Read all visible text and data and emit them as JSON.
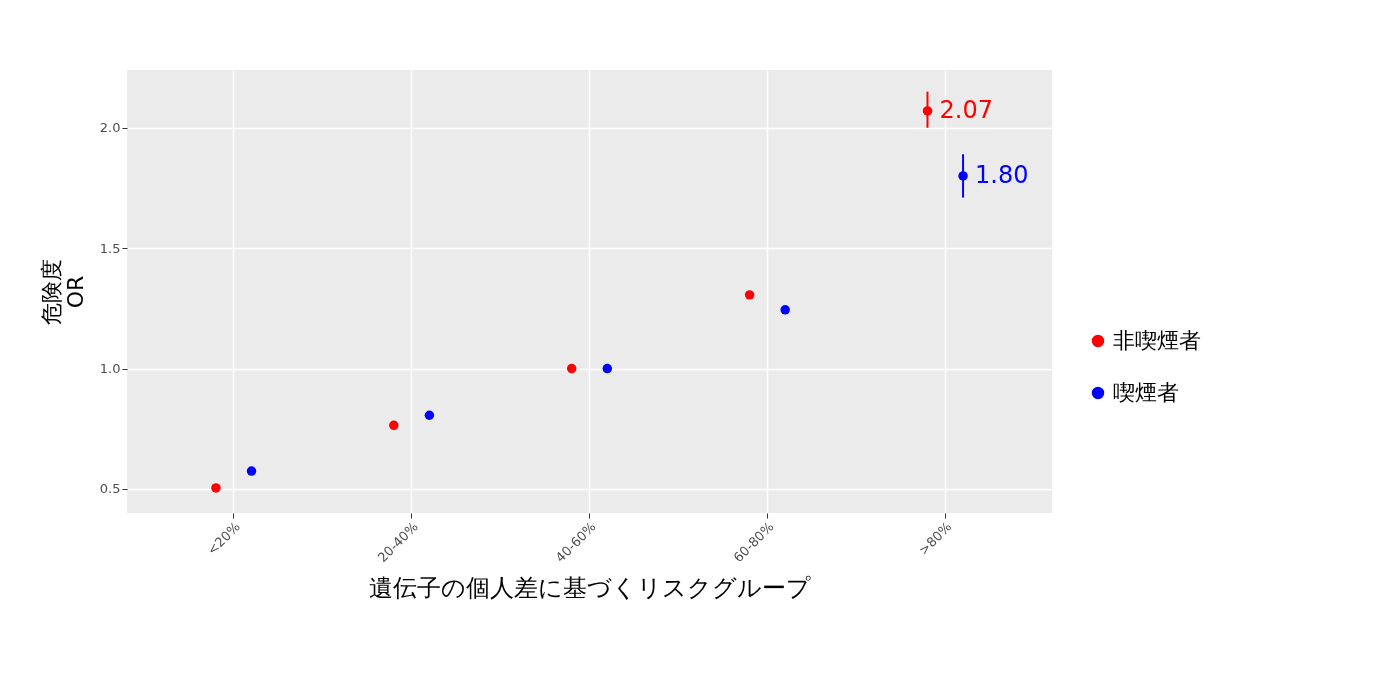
{
  "chart_data": {
    "type": "scatter",
    "xlabel": "遺伝子の個人差に基づくリスクグループ",
    "ylabel": "危険度\nOR",
    "categories": [
      "<20%",
      "20-40%",
      "40-60%",
      "60-80%",
      ">80%"
    ],
    "series": [
      {
        "name": "非喫煙者",
        "color": "#ff0000",
        "values": [
          0.504,
          0.764,
          1.0,
          1.306,
          2.07
        ],
        "errors": [
          null,
          null,
          null,
          null,
          [
            2.0,
            2.15
          ]
        ],
        "value_labels": [
          null,
          null,
          null,
          null,
          "2.07"
        ]
      },
      {
        "name": "喫煙者",
        "color": "#0000ff",
        "values": [
          0.574,
          0.806,
          1.0,
          1.244,
          1.8
        ],
        "errors": [
          null,
          null,
          null,
          null,
          [
            1.71,
            1.89
          ]
        ],
        "value_labels": [
          null,
          null,
          null,
          null,
          "1.80"
        ]
      }
    ],
    "ylim": [
      0.4,
      2.24
    ],
    "yticks": [
      {
        "value": 0.5,
        "label": "0.5"
      },
      {
        "value": 1.0,
        "label": "1.0"
      },
      {
        "value": 1.5,
        "label": "1.5"
      },
      {
        "value": 2.0,
        "label": "2.0"
      }
    ],
    "grid": true,
    "legend": "right",
    "marker": "circle"
  }
}
